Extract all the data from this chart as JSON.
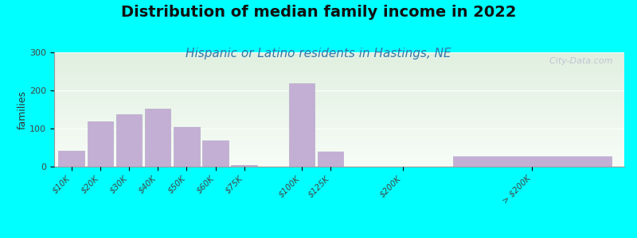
{
  "title": "Distribution of median family income in 2022",
  "subtitle": "Hispanic or Latino residents in Hastings, NE",
  "ylabel": "families",
  "background_outer": "#00FFFF",
  "bar_color": "#c4afd4",
  "bar_edge_color": "#b8a8cc",
  "categories": [
    "$10K",
    "$20K",
    "$30K",
    "$40K",
    "$50K",
    "$60K",
    "$75K",
    "$100K",
    "$125K",
    "$200K",
    "> $200K"
  ],
  "values": [
    42,
    118,
    138,
    152,
    104,
    68,
    5,
    218,
    40,
    0,
    28
  ],
  "ylim": [
    0,
    300
  ],
  "yticks": [
    0,
    100,
    200,
    300
  ],
  "title_fontsize": 14,
  "subtitle_fontsize": 11,
  "watermark": "  City-Data.com",
  "bar_positions": [
    0,
    1,
    2,
    3,
    4,
    5,
    6,
    8,
    9,
    11.5,
    16
  ],
  "bar_widths": [
    0.9,
    0.9,
    0.9,
    0.9,
    0.9,
    0.9,
    0.9,
    0.9,
    0.9,
    0.9,
    5.5
  ],
  "xlim": [
    -0.6,
    19.2
  ]
}
